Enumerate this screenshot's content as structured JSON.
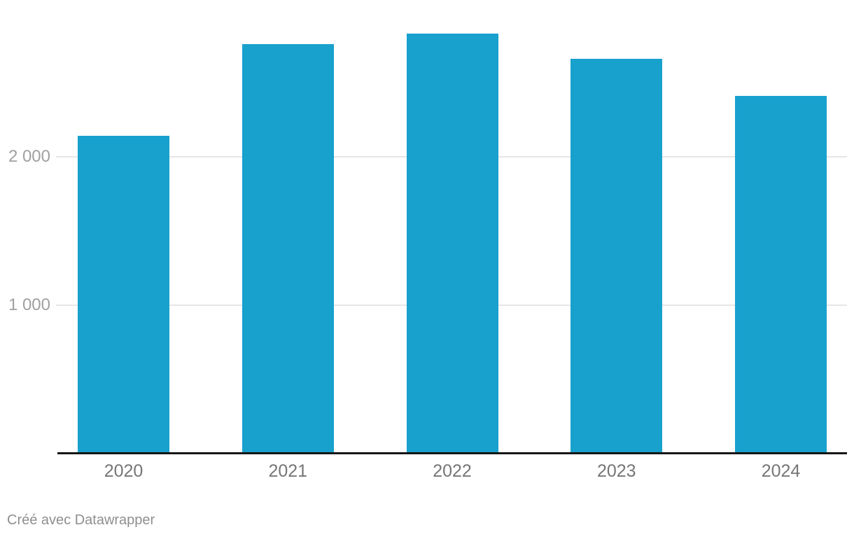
{
  "chart_data": {
    "type": "bar",
    "categories": [
      "2020",
      "2021",
      "2022",
      "2023",
      "2024"
    ],
    "values": [
      2140,
      2760,
      2830,
      2660,
      2410
    ],
    "title": "",
    "xlabel": "",
    "ylabel": "",
    "ylim": [
      0,
      3000
    ],
    "yticks": [
      {
        "value": 1000,
        "label": "1 000"
      },
      {
        "value": 2000,
        "label": "2 000"
      }
    ],
    "grid": "horizontal-only",
    "legend": "none",
    "bar_color": "#18a1cd"
  },
  "colors": {
    "bar": "#18a1cd",
    "gridline": "#e6e6e6",
    "axis_line": "#161616",
    "y_tick_text": "#a0a0a0",
    "x_tick_text": "#767676",
    "attribution_text": "#8f8f8f",
    "background": "#ffffff"
  },
  "attribution": {
    "text": "Créé avec Datawrapper"
  }
}
